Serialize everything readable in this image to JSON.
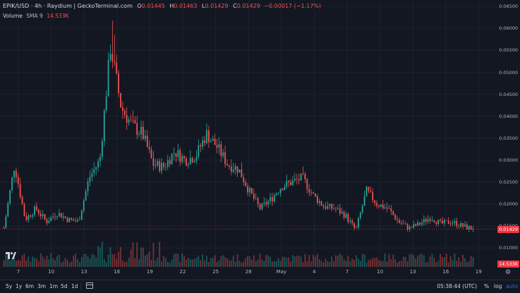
{
  "header": {
    "title": "EPIK/USD · 4h · Raydium | GeckoTerminal.com",
    "o_label": "O",
    "o": "0.01445",
    "h_label": "H",
    "h": "0.01463",
    "l_label": "L",
    "l": "0.01429",
    "c_label": "C",
    "c": "0.01429",
    "change": "−0.00017 (−1.17%)"
  },
  "volume_row": {
    "label": "Volume",
    "sma": "SMA 9",
    "value": "14.533K"
  },
  "price_axis": {
    "ticks": [
      "0.06500",
      "0.06000",
      "0.05500",
      "0.05000",
      "0.04500",
      "0.04000",
      "0.03500",
      "0.03000",
      "0.02500",
      "0.02000",
      "0.01500",
      "0.01000"
    ],
    "last_price": "0.01429",
    "volume_tag": "14.533K"
  },
  "time_axis": {
    "ticks": [
      "7",
      "10",
      "13",
      "16",
      "19",
      "22",
      "25",
      "28",
      "May",
      "4",
      "7",
      "10",
      "13",
      "16",
      "19"
    ]
  },
  "bottom_bar": {
    "ranges": [
      "5y",
      "1y",
      "6m",
      "3m",
      "1m",
      "5d",
      "1d"
    ],
    "clock": "05:38:44 (UTC)",
    "percent": "%",
    "log": "log",
    "auto": "auto"
  },
  "colors": {
    "up": "#26a69a",
    "down": "#ef5350",
    "accent": "#2962ff",
    "background": "#131722"
  },
  "icons": {
    "settings": "gear-icon",
    "goto_date": "calendar-icon",
    "logo": "tradingview-logo"
  },
  "chart_data": {
    "type": "candlestick",
    "pair": "EPIK/USD",
    "interval": "4h",
    "y_range": [
      0.0057,
      0.0665
    ],
    "x_ticks": [
      "7",
      "10",
      "13",
      "16",
      "19",
      "22",
      "25",
      "28",
      "May",
      "4",
      "7",
      "10",
      "13",
      "16",
      "19"
    ],
    "last_close": 0.01429,
    "close_trend": [
      {
        "x": "6",
        "close": 0.0145
      },
      {
        "x": "7",
        "close": 0.029
      },
      {
        "x": "8",
        "close": 0.0165
      },
      {
        "x": "9",
        "close": 0.019
      },
      {
        "x": "10",
        "close": 0.016
      },
      {
        "x": "11",
        "close": 0.018
      },
      {
        "x": "12",
        "close": 0.0165
      },
      {
        "x": "13",
        "close": 0.016
      },
      {
        "x": "14",
        "close": 0.026
      },
      {
        "x": "15",
        "close": 0.03
      },
      {
        "x": "16",
        "close": 0.056
      },
      {
        "x": "17",
        "close": 0.042
      },
      {
        "x": "18",
        "close": 0.038
      },
      {
        "x": "19",
        "close": 0.036
      },
      {
        "x": "20",
        "close": 0.029
      },
      {
        "x": "21",
        "close": 0.0285
      },
      {
        "x": "22",
        "close": 0.032
      },
      {
        "x": "23",
        "close": 0.03
      },
      {
        "x": "24",
        "close": 0.031
      },
      {
        "x": "25",
        "close": 0.036
      },
      {
        "x": "26",
        "close": 0.033
      },
      {
        "x": "27",
        "close": 0.029
      },
      {
        "x": "28",
        "close": 0.028
      },
      {
        "x": "29",
        "close": 0.023
      },
      {
        "x": "30",
        "close": 0.019
      },
      {
        "x": "May",
        "close": 0.021
      },
      {
        "x": "2",
        "close": 0.024
      },
      {
        "x": "3",
        "close": 0.025
      },
      {
        "x": "4",
        "close": 0.026
      },
      {
        "x": "5",
        "close": 0.022
      },
      {
        "x": "6",
        "close": 0.0195
      },
      {
        "x": "7",
        "close": 0.019
      },
      {
        "x": "8",
        "close": 0.0175
      },
      {
        "x": "9",
        "close": 0.014
      },
      {
        "x": "10",
        "close": 0.023
      },
      {
        "x": "11",
        "close": 0.02
      },
      {
        "x": "12",
        "close": 0.019
      },
      {
        "x": "13",
        "close": 0.016
      },
      {
        "x": "14",
        "close": 0.0145
      },
      {
        "x": "15",
        "close": 0.0155
      },
      {
        "x": "16",
        "close": 0.017
      },
      {
        "x": "17",
        "close": 0.0155
      },
      {
        "x": "18",
        "close": 0.016
      },
      {
        "x": "19",
        "close": 0.015
      },
      {
        "x": "20",
        "close": 0.0143
      }
    ],
    "volume": {
      "sma": "SMA 9",
      "last": "14.533K"
    }
  }
}
